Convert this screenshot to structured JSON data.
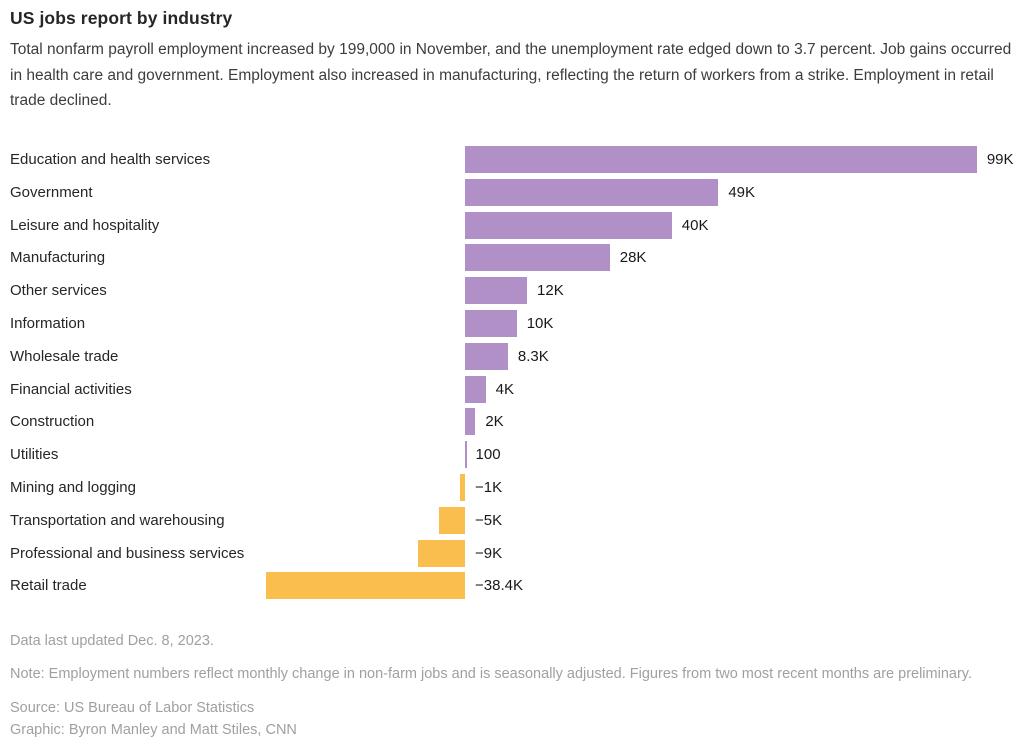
{
  "header": {
    "title": "US jobs report by industry",
    "subtitle": "Total nonfarm payroll employment increased by 199,000 in November, and the unemployment rate edged down to 3.7 percent. Job gains occurred in health care and government. Employment also increased in manufacturing, reflecting the return of workers from a strike. Employment in retail trade declined."
  },
  "chart_data": {
    "type": "bar",
    "orientation": "horizontal",
    "unit": "jobs (monthly change)",
    "title": "US jobs report by industry",
    "categories": [
      "Education and health services",
      "Government",
      "Leisure and hospitality",
      "Manufacturing",
      "Other services",
      "Information",
      "Wholesale trade",
      "Financial activities",
      "Construction",
      "Utilities",
      "Mining and logging",
      "Transportation and warehousing",
      "Professional and business services",
      "Retail trade"
    ],
    "values_thousands": [
      99,
      49,
      40,
      28,
      12,
      10,
      8.3,
      4,
      2,
      0.1,
      -1,
      -5,
      -9,
      -38.4
    ],
    "value_labels": [
      "99K",
      "49K",
      "40K",
      "28K",
      "12K",
      "10K",
      "8.3K",
      "4K",
      "2K",
      "100",
      "−1K",
      "−5K",
      "−9K",
      "−38.4K"
    ],
    "xlim_thousands": [
      -40,
      100
    ],
    "baseline": 0,
    "grid": false,
    "legend": null,
    "colors": {
      "positive_bar": "#b190c8",
      "negative_bar": "#f9be4e"
    }
  },
  "footer": {
    "updated": "Data last updated Dec. 8, 2023.",
    "note": "Note: Employment numbers reflect monthly change in non-farm jobs and is seasonally adjusted. Figures from two most recent months are preliminary.",
    "source": "Source: US Bureau of Labor Statistics",
    "credit": "Graphic: Byron Manley and Matt Stiles, CNN"
  }
}
